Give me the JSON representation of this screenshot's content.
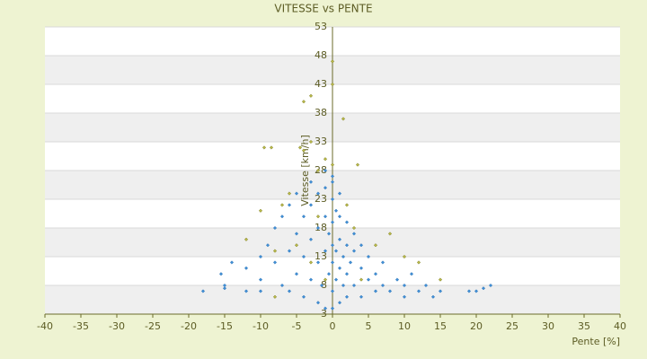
{
  "chart_data": {
    "type": "scatter",
    "title": "VITESSE vs PENTE",
    "x_label": "Pente [%]",
    "y_label": "Vitesse [km/h]",
    "xlim": [
      -40,
      40
    ],
    "xticks": [
      -40,
      -35,
      -30,
      -25,
      -20,
      -15,
      -10,
      -5,
      0,
      5,
      10,
      15,
      20,
      25,
      30,
      35,
      40
    ],
    "ylim": [
      3,
      53
    ],
    "yticks": [
      3,
      8,
      13,
      18,
      23,
      28,
      33,
      38,
      43,
      48,
      53
    ],
    "grid": true,
    "series": [
      {
        "color": "#3f8fd6",
        "x": [
          -18,
          -15,
          -15.5,
          -14,
          -12,
          -10,
          -10,
          -9,
          -8,
          -8,
          -7,
          -7,
          -6,
          -6,
          -5,
          -5,
          -5,
          -4,
          -4,
          -4,
          -3,
          -3,
          -3,
          -3,
          -2,
          -2,
          -2,
          -2,
          -1.5,
          -1,
          -1,
          -1,
          -1,
          -0.5,
          -0.5,
          0,
          0,
          0,
          0,
          0,
          0,
          0.5,
          0.5,
          0.5,
          1,
          1,
          1,
          1,
          1.5,
          1.5,
          2,
          2,
          2,
          2,
          2.5,
          3,
          3,
          3,
          4,
          4,
          4,
          5,
          5,
          6,
          6,
          7,
          7,
          8,
          9,
          10,
          10,
          11,
          12,
          13,
          14,
          15,
          19,
          20,
          21,
          22,
          -15,
          -12,
          -10,
          -6,
          1,
          0,
          -1,
          0
        ],
        "y": [
          7,
          8,
          10,
          12,
          11,
          9,
          13,
          15,
          12,
          18,
          8,
          20,
          14,
          22,
          10,
          17,
          24,
          6,
          13,
          20,
          9,
          16,
          22,
          26,
          5,
          12,
          18,
          24,
          8,
          4,
          14,
          20,
          25,
          10,
          17,
          4,
          7,
          12,
          15,
          19,
          23,
          9,
          14,
          21,
          5,
          11,
          16,
          20,
          8,
          13,
          6,
          10,
          15,
          19,
          12,
          8,
          14,
          17,
          6,
          11,
          15,
          9,
          13,
          7,
          10,
          8,
          12,
          7,
          9,
          6,
          8,
          10,
          7,
          8,
          6,
          7,
          7,
          7,
          7.5,
          8,
          7.5,
          7,
          7,
          7,
          24,
          26,
          28,
          27
        ]
      },
      {
        "color": "#b9b94a",
        "x": [
          -9.5,
          -8.5,
          -4.5,
          -4,
          -4,
          -3,
          -3,
          -2,
          -1,
          0,
          1.5,
          3.5,
          -10,
          -12,
          -8,
          -5,
          -7,
          8,
          10,
          12,
          15,
          2,
          3,
          -3,
          -1,
          0,
          0,
          -6,
          6,
          -2,
          4,
          -8
        ],
        "y": [
          32,
          32,
          32,
          31.5,
          40,
          41,
          33,
          28,
          30,
          29,
          37,
          29,
          21,
          16,
          14,
          15,
          22,
          17,
          13,
          12,
          9,
          22,
          18,
          12,
          9,
          47,
          43,
          24,
          15,
          20,
          9,
          6
        ]
      }
    ]
  }
}
